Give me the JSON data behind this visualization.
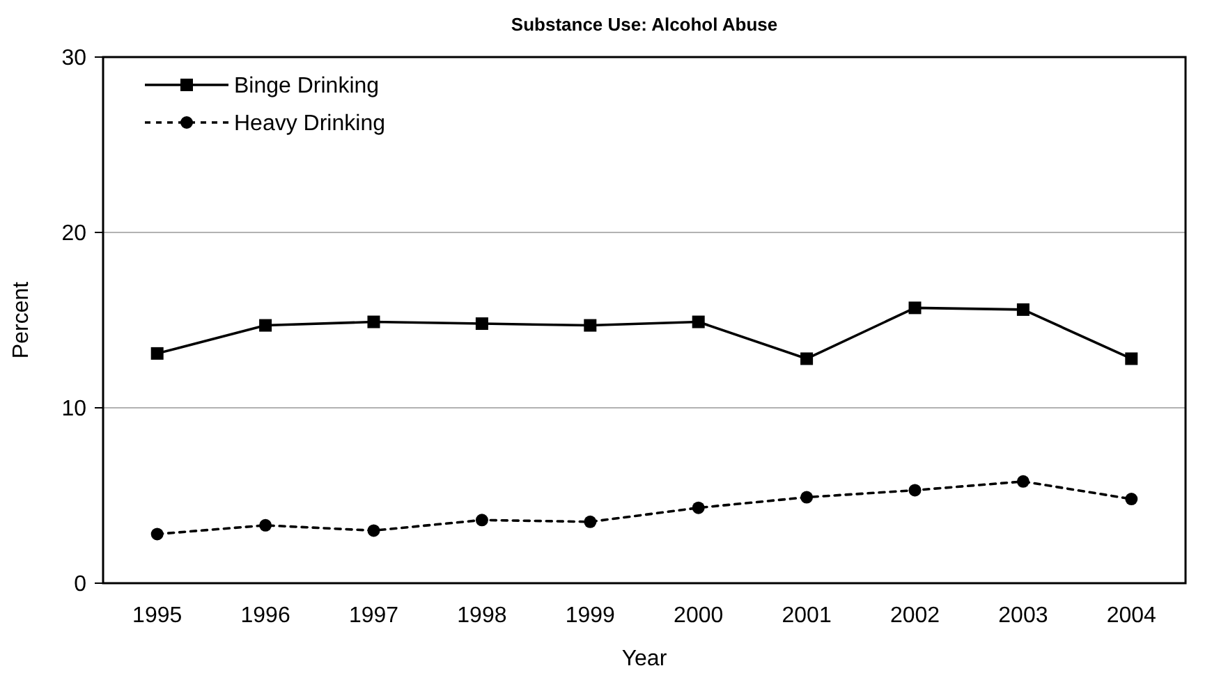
{
  "chart_data": {
    "type": "line",
    "title": "Substance Use:  Alcohol Abuse",
    "xlabel": "Year",
    "ylabel": "Percent",
    "categories": [
      "1995",
      "1996",
      "1997",
      "1998",
      "1999",
      "2000",
      "2001",
      "2002",
      "2003",
      "2004"
    ],
    "series": [
      {
        "name": "Binge Drinking",
        "color": "#000000",
        "marker": "square",
        "line_style": "solid",
        "values": [
          13.1,
          14.7,
          14.9,
          14.8,
          14.7,
          14.9,
          12.8,
          15.7,
          15.6,
          12.8
        ]
      },
      {
        "name": "Heavy Drinking",
        "color": "#000000",
        "marker": "circle",
        "line_style": "dashed",
        "values": [
          2.8,
          3.3,
          3.0,
          3.6,
          3.5,
          4.3,
          4.9,
          5.3,
          5.8,
          4.8
        ]
      }
    ],
    "ylim": [
      0,
      30
    ],
    "yticks": [
      0,
      10,
      20,
      30
    ],
    "grid": "y",
    "legend": "top left"
  }
}
